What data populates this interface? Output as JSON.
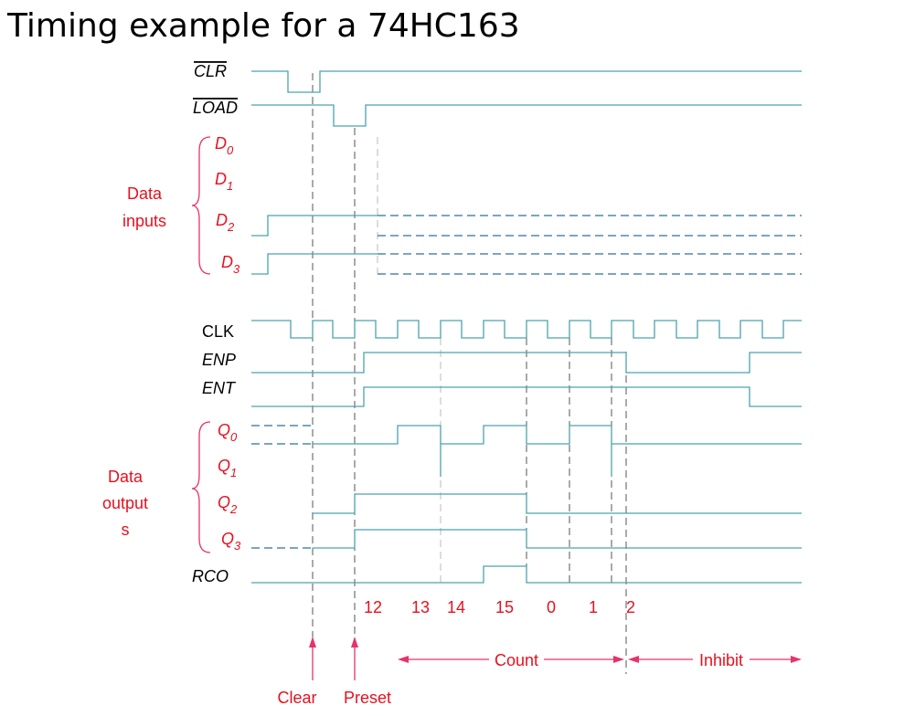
{
  "title": "Timing example for a 74HC163",
  "signals": [
    {
      "name": "CLR"
    },
    {
      "name": "LOAD"
    },
    {
      "name": "D",
      "sub": "0"
    },
    {
      "name": "D",
      "sub": "1"
    },
    {
      "name": "D",
      "sub": "2"
    },
    {
      "name": "D",
      "sub": "3"
    },
    {
      "name": "CLK"
    },
    {
      "name": "ENP"
    },
    {
      "name": "ENT"
    },
    {
      "name": "Q",
      "sub": "0"
    },
    {
      "name": "Q",
      "sub": "1"
    },
    {
      "name": "Q",
      "sub": "2"
    },
    {
      "name": "Q",
      "sub": "3"
    },
    {
      "name": "RCO"
    }
  ],
  "groups": {
    "inputs": [
      "Data",
      "inputs"
    ],
    "outputs": [
      "Data",
      "output",
      "s"
    ]
  },
  "states": [
    "12",
    "13",
    "14",
    "15",
    "0",
    "1",
    "2"
  ],
  "phases": {
    "count": "Count",
    "inhibit": "Inhibit"
  },
  "events": {
    "clear": "Clear",
    "preset": "Preset"
  }
}
